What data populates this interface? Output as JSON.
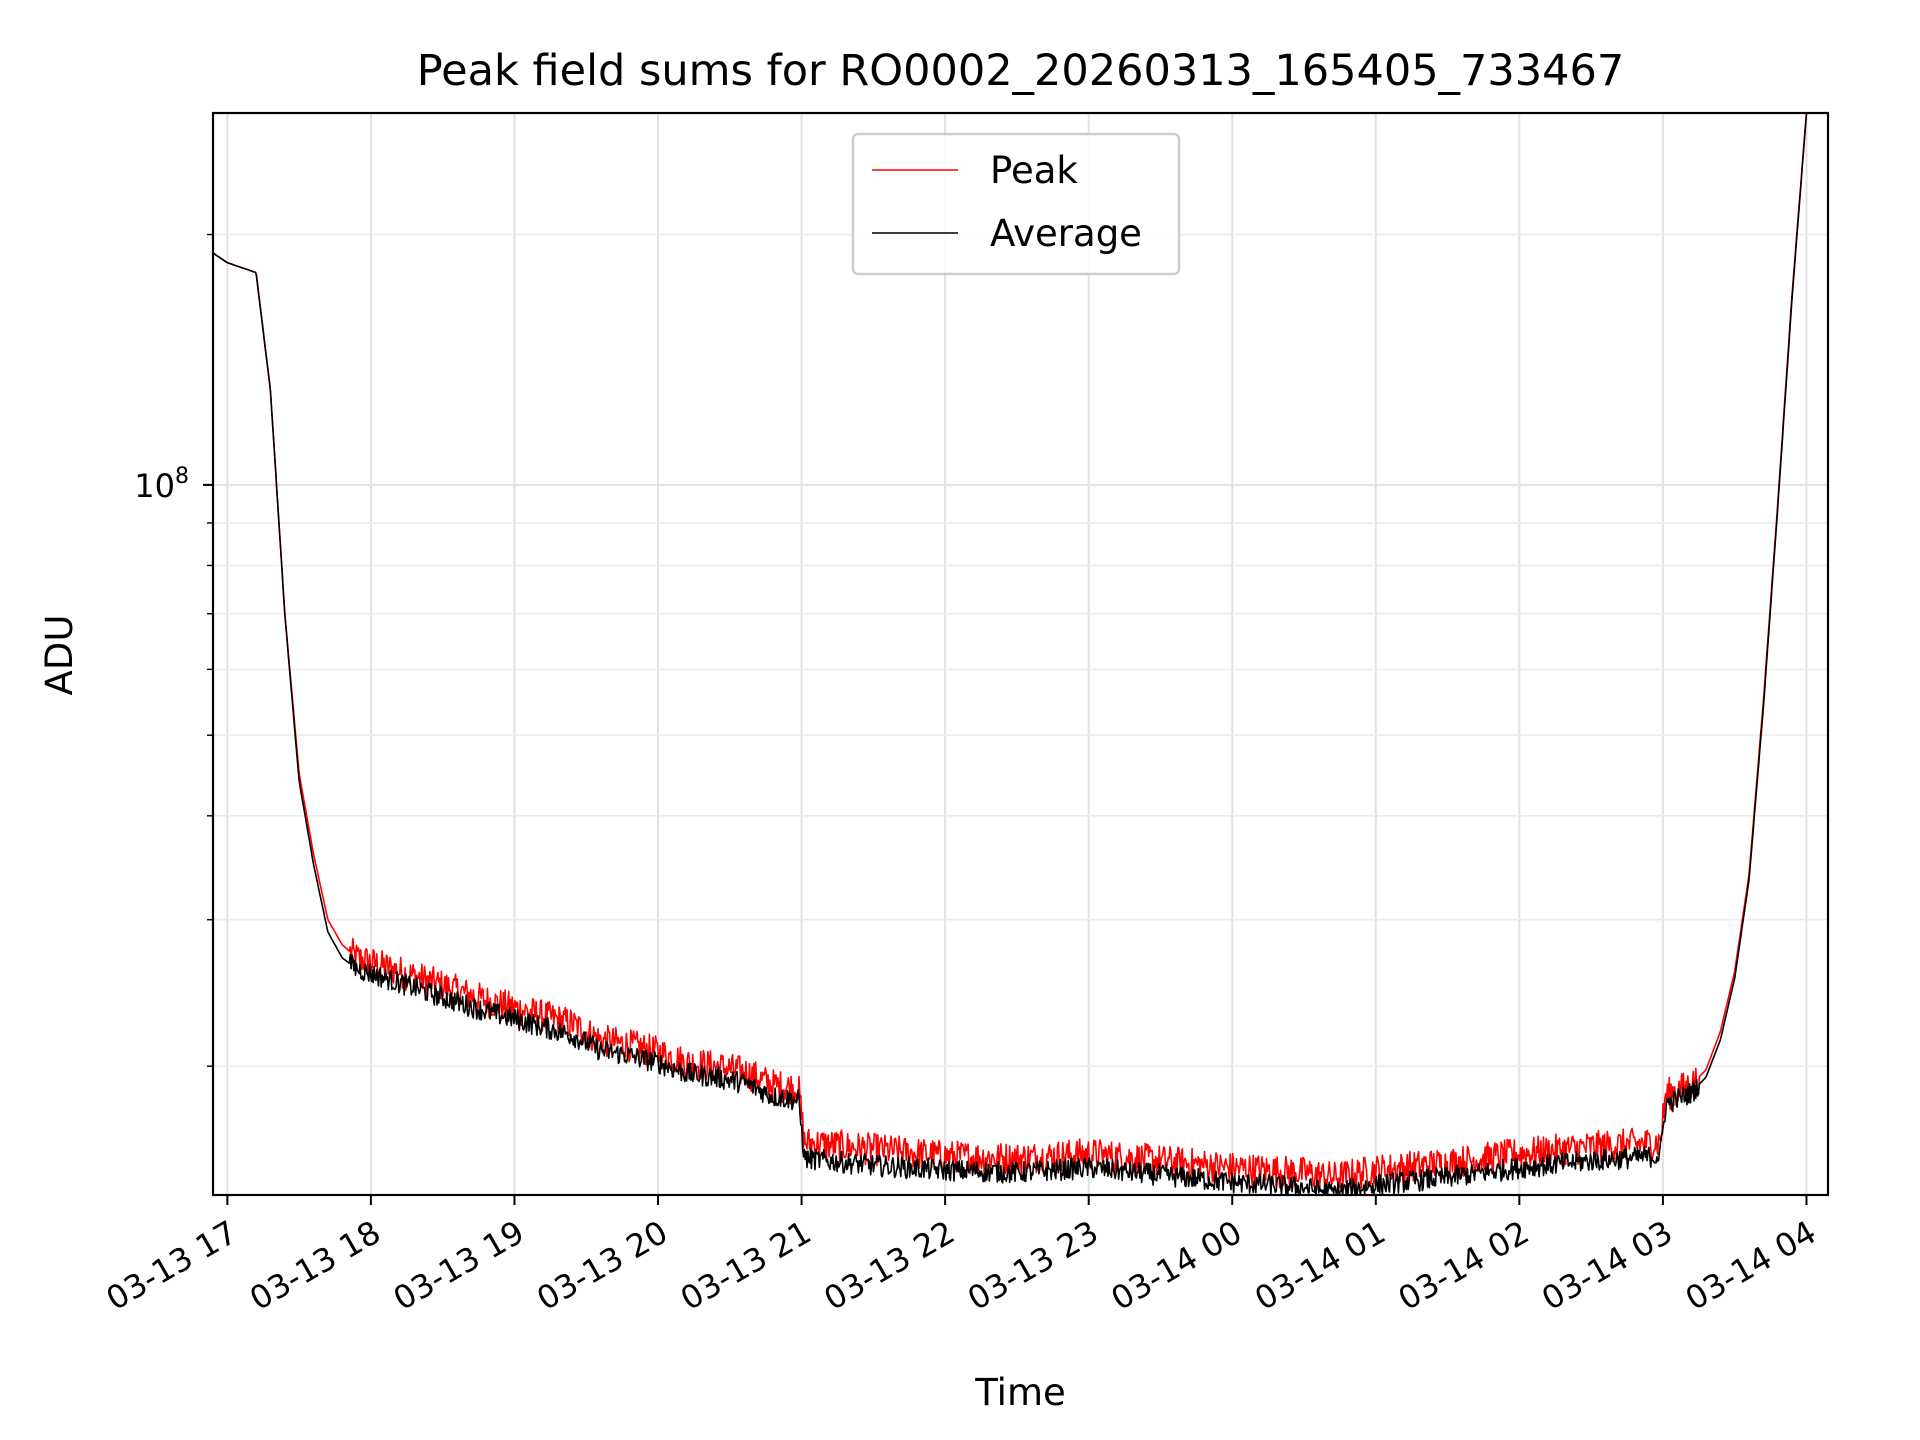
{
  "chart_data": {
    "type": "line",
    "title": "Peak field sums for RO0002_20260313_165405_733467",
    "xlabel": "Time",
    "ylabel": "ADU",
    "y_scale": "log",
    "ylim": [
      14000000,
      280000000
    ],
    "y_major_ticks": [
      {
        "value": 100000000,
        "base": "10",
        "exp": "8"
      }
    ],
    "xlim_hours": [
      16.9,
      28.15
    ],
    "x_ticks": [
      {
        "hour": 17,
        "label": "03-13 17"
      },
      {
        "hour": 18,
        "label": "03-13 18"
      },
      {
        "hour": 19,
        "label": "03-13 19"
      },
      {
        "hour": 20,
        "label": "03-13 20"
      },
      {
        "hour": 21,
        "label": "03-13 21"
      },
      {
        "hour": 22,
        "label": "03-13 22"
      },
      {
        "hour": 23,
        "label": "03-13 23"
      },
      {
        "hour": 24,
        "label": "03-14 00"
      },
      {
        "hour": 25,
        "label": "03-14 01"
      },
      {
        "hour": 26,
        "label": "03-14 02"
      },
      {
        "hour": 27,
        "label": "03-14 03"
      },
      {
        "hour": 28,
        "label": "03-14 04"
      }
    ],
    "grid": true,
    "legend_position": "upper-center",
    "series": [
      {
        "name": "Peak",
        "color": "#ff0000",
        "x_hours": [
          16.9,
          17.0,
          17.2,
          17.3,
          17.4,
          17.5,
          17.6,
          17.7,
          17.8,
          17.9,
          18.2,
          18.5,
          18.8,
          19.0,
          19.2,
          19.4,
          19.6,
          19.8,
          20.0,
          20.2,
          20.4,
          20.6,
          20.8,
          20.98,
          21.02,
          21.5,
          22.0,
          22.5,
          23.0,
          23.5,
          24.0,
          24.5,
          24.7,
          25.0,
          25.5,
          26.0,
          26.5,
          26.98,
          27.02,
          27.2,
          27.3,
          27.4,
          27.5,
          27.6,
          27.7,
          27.8,
          27.9,
          28.0
        ],
        "values": [
          190000000,
          185000000,
          180000000,
          130000000,
          70000000,
          45000000,
          36000000,
          30000000,
          28000000,
          27000000,
          26000000,
          25000000,
          24000000,
          23500000,
          23000000,
          22500000,
          21500000,
          21200000,
          20800000,
          20200000,
          20000000,
          19700000,
          19000000,
          18800000,
          16200000,
          15900000,
          15600000,
          15500000,
          15700000,
          15400000,
          15100000,
          14900000,
          14700000,
          15000000,
          15300000,
          15700000,
          16000000,
          16200000,
          18500000,
          19000000,
          19800000,
          22000000,
          26000000,
          34000000,
          55000000,
          95000000,
          170000000,
          280000000
        ]
      },
      {
        "name": "Average",
        "color": "#000000",
        "x_hours": [
          16.9,
          17.0,
          17.2,
          17.3,
          17.4,
          17.5,
          17.6,
          17.7,
          17.8,
          17.9,
          18.2,
          18.5,
          18.8,
          19.0,
          19.2,
          19.4,
          19.6,
          19.8,
          20.0,
          20.2,
          20.4,
          20.6,
          20.8,
          20.98,
          21.02,
          21.5,
          22.0,
          22.5,
          23.0,
          23.5,
          24.0,
          24.5,
          24.7,
          25.0,
          25.5,
          26.0,
          26.5,
          26.98,
          27.02,
          27.2,
          27.3,
          27.4,
          27.5,
          27.6,
          27.7,
          27.8,
          27.9,
          28.0
        ],
        "values": [
          190000000,
          185000000,
          180000000,
          130000000,
          70000000,
          44000000,
          35000000,
          29000000,
          27000000,
          26200000,
          25200000,
          24200000,
          23300000,
          22800000,
          22300000,
          21800000,
          20900000,
          20600000,
          20200000,
          19600000,
          19400000,
          19100000,
          18400000,
          18200000,
          15500000,
          15200000,
          15000000,
          14900000,
          15100000,
          14800000,
          14500000,
          14300000,
          14100000,
          14400000,
          14700000,
          15100000,
          15400000,
          15600000,
          18000000,
          18600000,
          19400000,
          21500000,
          25500000,
          33500000,
          54000000,
          94000000,
          168000000,
          280000000
        ]
      }
    ]
  }
}
